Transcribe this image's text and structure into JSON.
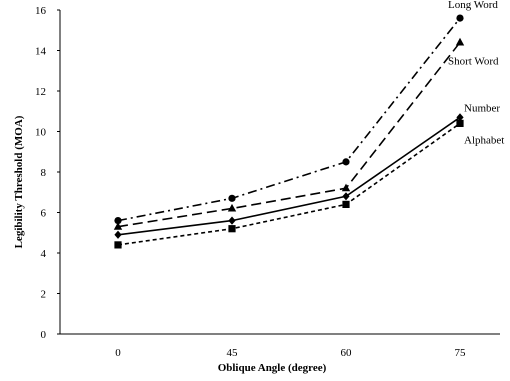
{
  "chart_data": {
    "type": "line",
    "title": "",
    "xlabel": "Oblique Angle (degree)",
    "ylabel": "Legibility Threshold (MOA)",
    "categories": [
      "0",
      "45",
      "60",
      "75"
    ],
    "ylim": [
      0,
      16
    ],
    "yticks": [
      "0",
      "2",
      "4",
      "6",
      "8",
      "10",
      "12",
      "14",
      "16"
    ],
    "grid": false,
    "legend": "inline labels at right end of lines",
    "series": [
      {
        "name": "Long Word",
        "values": [
          5.6,
          6.7,
          8.5,
          15.6
        ],
        "marker": "circle",
        "dash": "dash-dot"
      },
      {
        "name": "Short Word",
        "values": [
          5.3,
          6.2,
          7.2,
          14.4
        ],
        "marker": "triangle",
        "dash": "long-dash"
      },
      {
        "name": "Number",
        "values": [
          4.9,
          5.6,
          6.8,
          10.7
        ],
        "marker": "diamond",
        "dash": "solid"
      },
      {
        "name": "Alphabet",
        "values": [
          4.4,
          5.2,
          6.4,
          10.4
        ],
        "marker": "square",
        "dash": "short-dash"
      }
    ]
  }
}
